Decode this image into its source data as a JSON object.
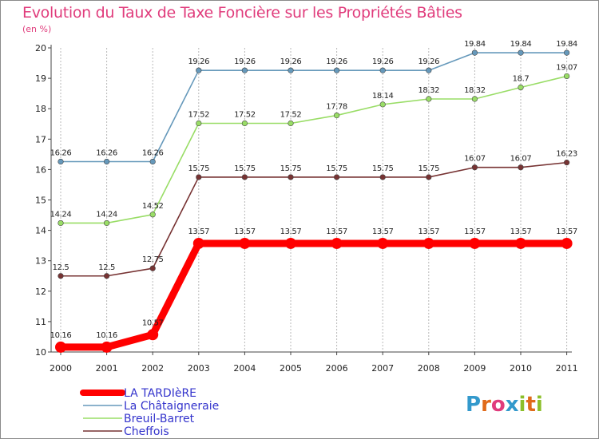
{
  "colors": {
    "title": "#e03c7c",
    "grid": "#b8b8b8",
    "axis": "#444444",
    "legend_text": "#3333cc"
  },
  "logo": {
    "text": "Proxiti",
    "letter_colors": [
      "#3399cc",
      "#e06a1a",
      "#e03c7c",
      "#3399cc",
      "#8cbf2a",
      "#e06a1a",
      "#8cbf2a"
    ]
  },
  "chart_data": {
    "type": "line",
    "title": "Evolution du Taux de Taxe Foncière sur les Propriétés Bâties",
    "ylabel": "(en %)",
    "xlabel": "",
    "x": [
      "2000",
      "2001",
      "2002",
      "2003",
      "2004",
      "2005",
      "2006",
      "2007",
      "2008",
      "2009",
      "2010",
      "2011"
    ],
    "ylim": [
      10,
      20
    ],
    "yticks": [
      "10",
      "11",
      "12",
      "13",
      "14",
      "15",
      "16",
      "17",
      "18",
      "19",
      "20"
    ],
    "grid": "vertical",
    "series": [
      {
        "name": "LA TARDIèRE",
        "color": "#ff0000",
        "emphasis": true,
        "values": [
          10.16,
          10.16,
          10.57,
          13.57,
          13.57,
          13.57,
          13.57,
          13.57,
          13.57,
          13.57,
          13.57,
          13.57
        ],
        "labels": [
          "10.16",
          "10.16",
          "10.57",
          "13.57",
          "13.57",
          "13.57",
          "13.57",
          "13.57",
          "13.57",
          "13.57",
          "13.57",
          "13.57"
        ]
      },
      {
        "name": "La Châtaigneraie",
        "color": "#6699bb",
        "emphasis": false,
        "values": [
          16.26,
          16.26,
          16.26,
          19.26,
          19.26,
          19.26,
          19.26,
          19.26,
          19.26,
          19.84,
          19.84,
          19.84
        ],
        "labels": [
          "16.26",
          "16.26",
          "16.26",
          "19.26",
          "19.26",
          "19.26",
          "19.26",
          "19.26",
          "19.26",
          "19.84",
          "19.84",
          "19.84"
        ]
      },
      {
        "name": "Breuil-Barret",
        "color": "#99dd66",
        "emphasis": false,
        "values": [
          14.24,
          14.24,
          14.52,
          17.52,
          17.52,
          17.52,
          17.78,
          18.14,
          18.32,
          18.32,
          18.7,
          19.07
        ],
        "labels": [
          "14.24",
          "14.24",
          "14.52",
          "17.52",
          "17.52",
          "17.52",
          "17.78",
          "18.14",
          "18.32",
          "18.32",
          "18.7",
          "19.07"
        ]
      },
      {
        "name": "Cheffois",
        "color": "#773333",
        "emphasis": false,
        "values": [
          12.5,
          12.5,
          12.75,
          15.75,
          15.75,
          15.75,
          15.75,
          15.75,
          15.75,
          16.07,
          16.07,
          16.23
        ],
        "labels": [
          "12.5",
          "12.5",
          "12.75",
          "15.75",
          "15.75",
          "15.75",
          "15.75",
          "15.75",
          "15.75",
          "16.07",
          "16.07",
          "16.23"
        ]
      }
    ],
    "legend": [
      "LA TARDIèRE",
      "La Châtaigneraie",
      "Breuil-Barret",
      "Cheffois"
    ],
    "legend_position": "bottom-left"
  }
}
